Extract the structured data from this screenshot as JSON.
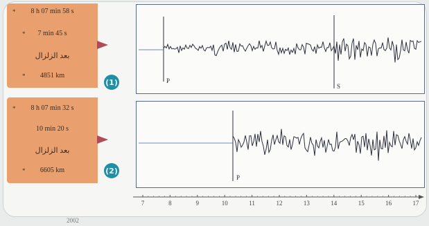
{
  "stations": [
    {
      "badge": "(1)",
      "lines": [
        "8 h 07 min 58 s",
        "7 min 45 s",
        "بعد الزلزال",
        "4851 km"
      ],
      "phases": [
        "P",
        "S"
      ]
    },
    {
      "badge": "(2)",
      "lines": [
        "8 h 07 min 32 s",
        "10 min 20 s",
        "بعد الزلزال",
        "6605 km"
      ],
      "phases": [
        "P"
      ]
    }
  ],
  "axis": {
    "ticks": [
      "7",
      "8",
      "9",
      "10",
      "11",
      "12",
      "13",
      "14",
      "15",
      "16",
      "17"
    ]
  },
  "footer_text": "2002",
  "colors": {
    "panel": "#e9a06e",
    "trace": "#2b2f3a",
    "frame": "#5a6a86",
    "baseline": "#6f88b8",
    "badge": "#1f8fa5",
    "arrow": "#b04a55"
  }
}
